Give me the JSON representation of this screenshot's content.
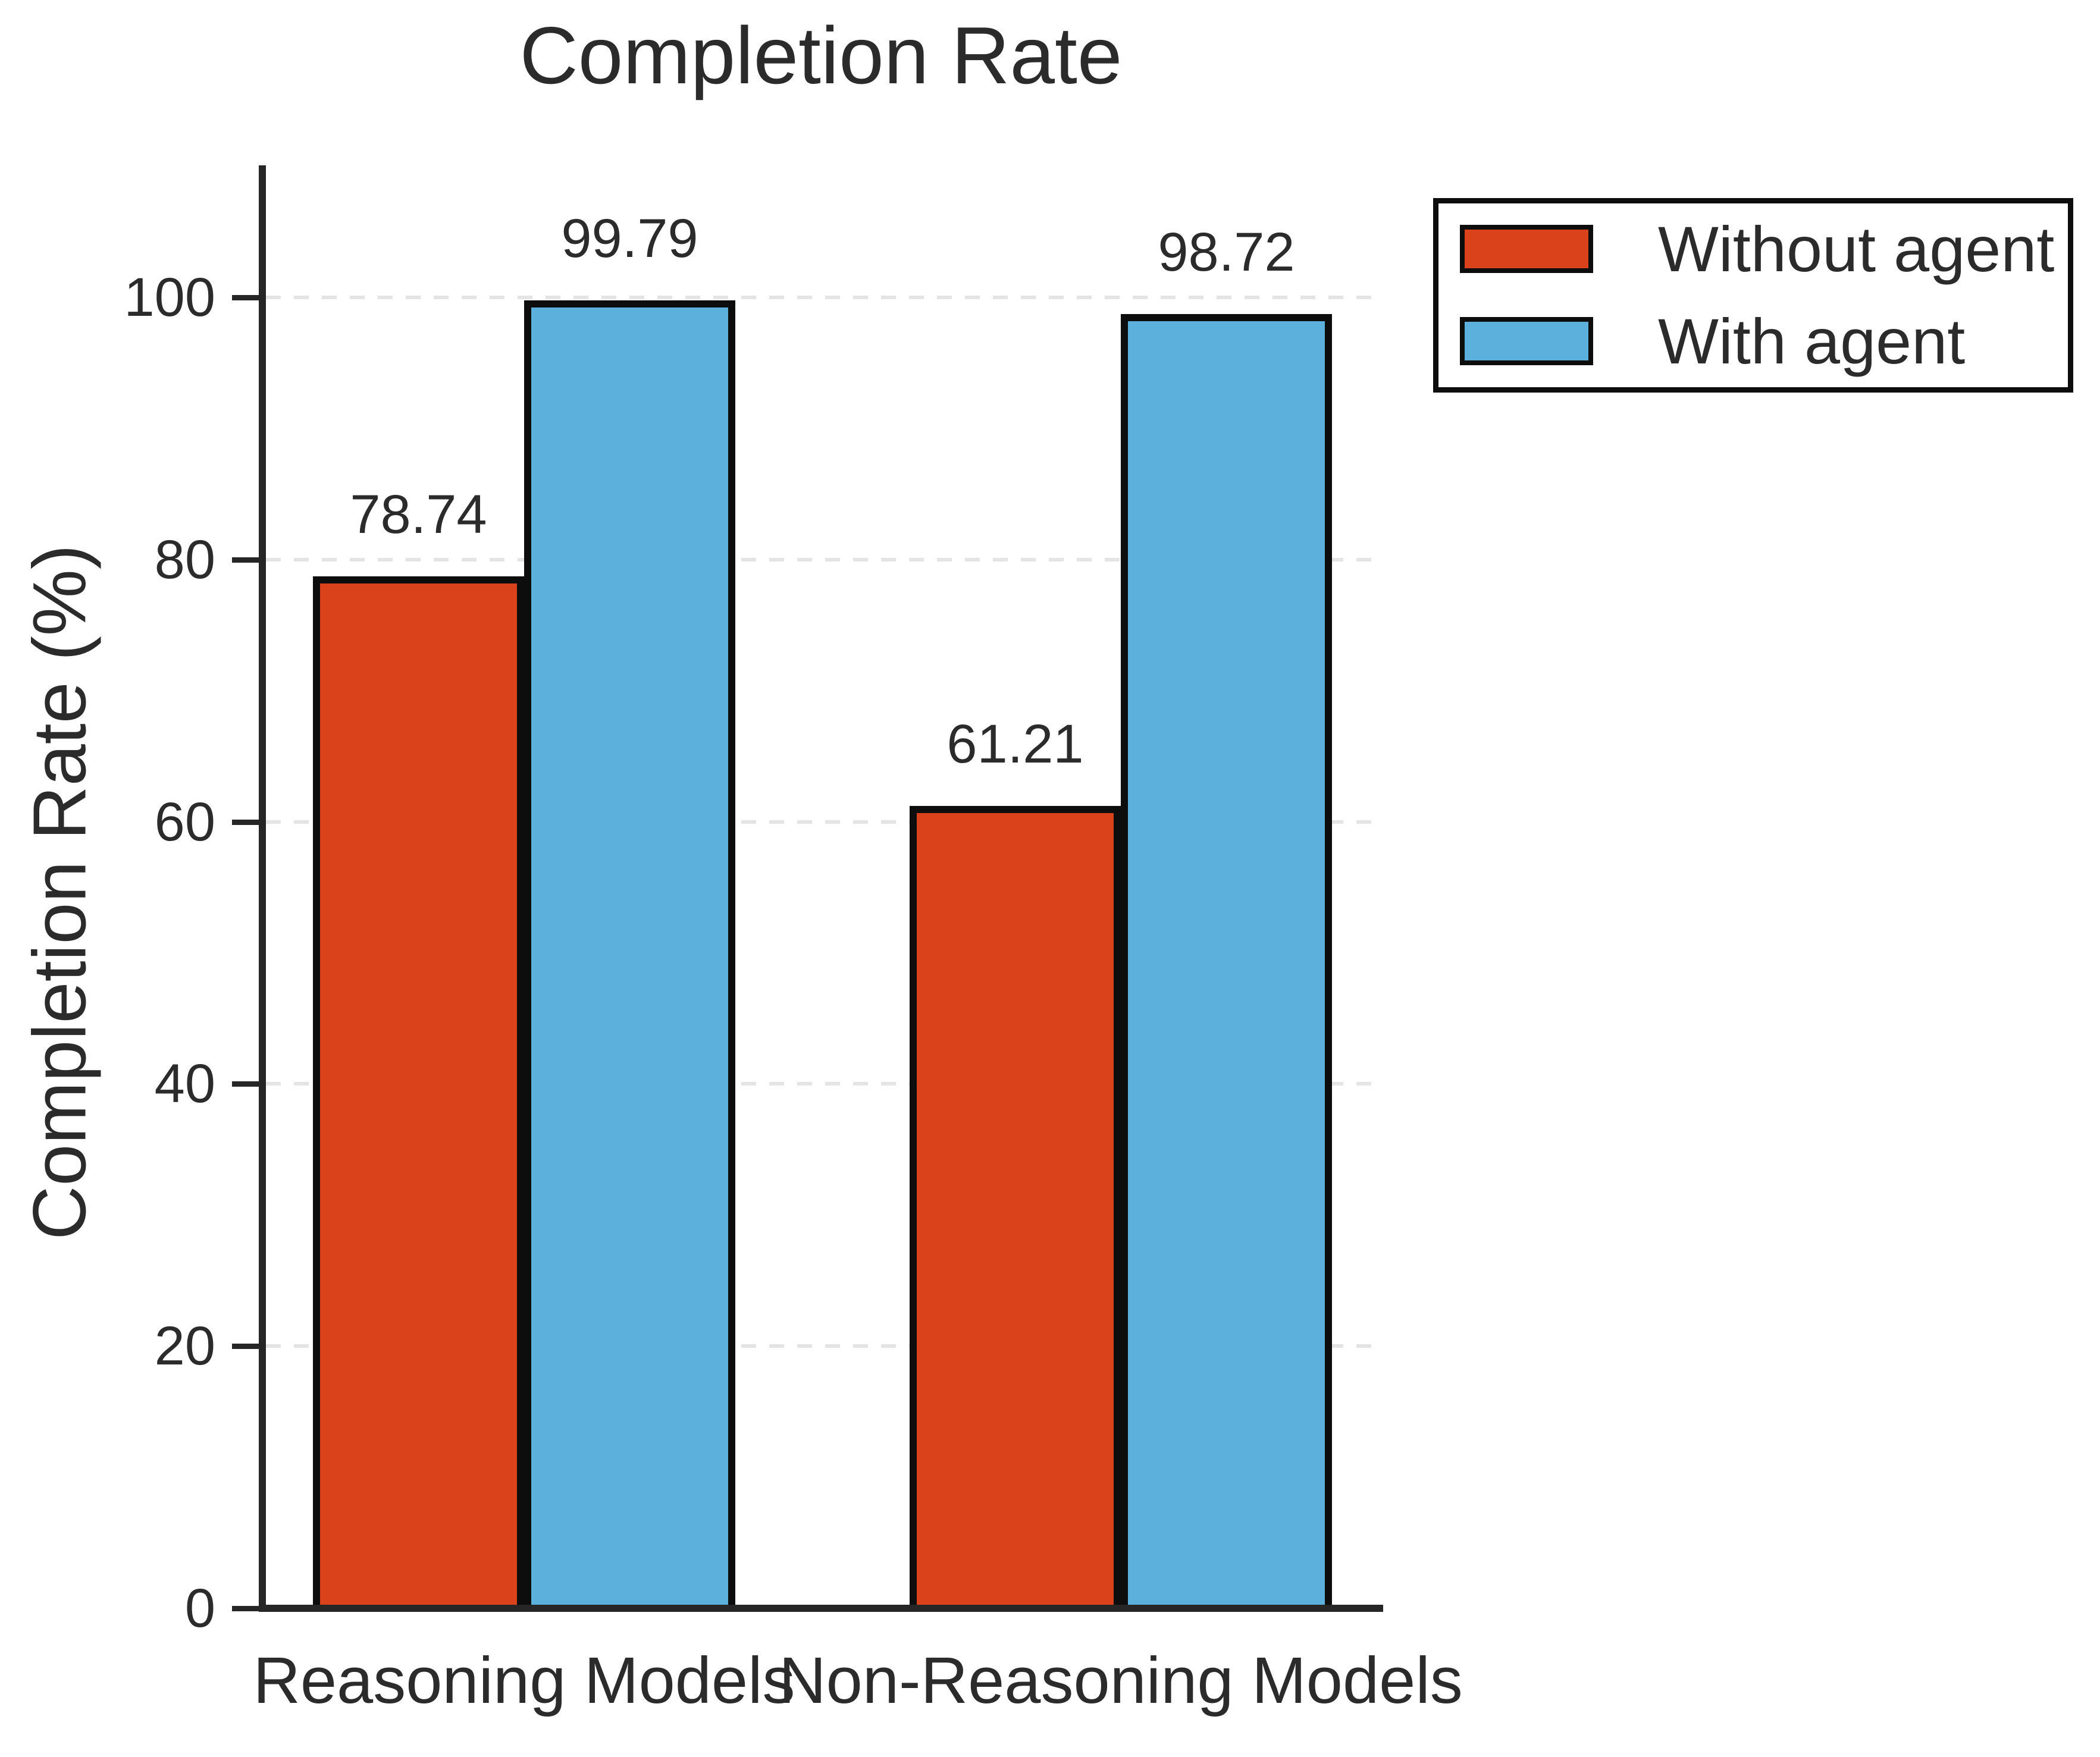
{
  "chart_data": {
    "type": "bar",
    "title": "Completion Rate",
    "ylabel": "Completion Rate (%)",
    "xlabel": "",
    "categories": [
      "Reasoning Models",
      "Non-Reasoning Models"
    ],
    "series": [
      {
        "name": "Without agent",
        "color": "#da421c",
        "values": [
          78.74,
          61.21
        ]
      },
      {
        "name": "With agent",
        "color": "#5cb0dc",
        "values": [
          99.79,
          98.72
        ]
      }
    ],
    "bar_value_labels": {
      "without_agent": [
        "78.74",
        "61.21"
      ],
      "with_agent": [
        "99.79",
        "98.72"
      ]
    },
    "yticks": [
      0,
      20,
      40,
      60,
      80,
      100
    ],
    "ylim": [
      0,
      110
    ],
    "grid": "horizontal dashed, light gray",
    "legend_position": "upper right",
    "bar_edge_color": "#0d0d0d"
  }
}
